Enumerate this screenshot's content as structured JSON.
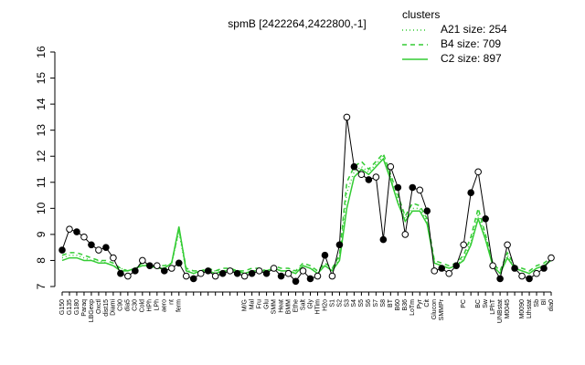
{
  "chart_data": {
    "type": "line",
    "title": "spmB [2422264,2422800,-1]",
    "legend_title": "clusters",
    "legend": "top-right",
    "categories": [
      "G150",
      "G135",
      "G180",
      "Paraq",
      "LBGexp",
      "Oxctl",
      "dist15",
      "Diami",
      "C90",
      "dia5",
      "C30",
      "Cold",
      "HPh",
      "LPh",
      "aero",
      "nt",
      "ferm",
      null,
      null,
      null,
      null,
      null,
      null,
      null,
      null,
      "M/G",
      "Mal",
      "Fru",
      "Glu",
      "SMM",
      "Heat",
      "BMM",
      "Ethe",
      "Salt",
      "Gly",
      "HTim",
      "H2o",
      "S1",
      "S2",
      "S3",
      "S4",
      "S5",
      "S6",
      "S7",
      "S8",
      "BT",
      "B60",
      "B36",
      "LoTm",
      "Pyr",
      "Cit",
      "Glucon",
      "SMMPr",
      null,
      null,
      "PC",
      null,
      "BC",
      "Sw",
      "LPhT",
      "UNBstat",
      "M0045",
      null,
      "M0090",
      "Lthstat",
      "Sb",
      "Bl",
      "dia0"
    ],
    "series": [
      {
        "name": "A21 size: 254",
        "color": "#33cc33",
        "dash": "dotted",
        "values": [
          8.1,
          8.2,
          8.2,
          8.1,
          8.0,
          8.0,
          7.9,
          7.8,
          7.7,
          7.6,
          7.7,
          7.8,
          7.8,
          7.7,
          7.7,
          7.9,
          9.1,
          7.6,
          7.6,
          7.6,
          7.6,
          7.6,
          7.6,
          7.6,
          7.6,
          7.5,
          7.6,
          7.6,
          7.6,
          7.7,
          7.6,
          7.6,
          7.6,
          7.8,
          7.7,
          7.6,
          7.8,
          7.6,
          8.1,
          10.6,
          11.4,
          11.6,
          11.4,
          11.7,
          12.0,
          11.2,
          10.3,
          9.6,
          10.0,
          10.0,
          9.5,
          7.9,
          7.8,
          7.7,
          7.8,
          8.1,
          8.7,
          9.8,
          8.9,
          7.8,
          7.5,
          8.2,
          7.7,
          7.6,
          7.5,
          7.7,
          7.8,
          8.0
        ]
      },
      {
        "name": "B4 size: 709",
        "color": "#33cc33",
        "dash": "dashed",
        "values": [
          8.2,
          8.3,
          8.3,
          8.2,
          8.1,
          8.0,
          8.0,
          7.9,
          7.7,
          7.6,
          7.7,
          7.9,
          7.8,
          7.8,
          7.8,
          7.9,
          9.2,
          7.7,
          7.6,
          7.6,
          7.7,
          7.6,
          7.7,
          7.7,
          7.6,
          7.6,
          7.7,
          7.7,
          7.6,
          7.8,
          7.7,
          7.7,
          7.6,
          7.9,
          7.8,
          7.6,
          7.9,
          7.7,
          8.2,
          11.0,
          11.6,
          11.8,
          11.5,
          11.8,
          12.1,
          11.3,
          10.5,
          9.7,
          10.2,
          10.1,
          9.6,
          8.0,
          7.9,
          7.8,
          7.9,
          8.2,
          8.9,
          10.0,
          9.0,
          7.9,
          7.6,
          8.3,
          7.8,
          7.7,
          7.6,
          7.8,
          7.9,
          8.1
        ]
      },
      {
        "name": "C2 size: 897",
        "color": "#33cc33",
        "dash": "solid",
        "values": [
          8.0,
          8.1,
          8.1,
          8.0,
          8.0,
          7.9,
          7.9,
          7.8,
          7.6,
          7.6,
          7.7,
          7.8,
          7.8,
          7.7,
          7.7,
          7.9,
          9.3,
          7.6,
          7.5,
          7.6,
          7.6,
          7.5,
          7.6,
          7.6,
          7.6,
          7.5,
          7.6,
          7.6,
          7.6,
          7.7,
          7.6,
          7.6,
          7.5,
          7.8,
          7.7,
          7.5,
          7.8,
          7.6,
          8.0,
          10.0,
          11.2,
          11.5,
          11.3,
          11.6,
          11.9,
          11.1,
          10.2,
          9.5,
          9.9,
          9.9,
          9.4,
          7.9,
          7.8,
          7.7,
          7.8,
          8.0,
          8.6,
          9.6,
          8.8,
          7.8,
          7.5,
          8.1,
          7.7,
          7.6,
          7.5,
          7.7,
          7.8,
          8.0
        ]
      }
    ],
    "points": [
      8.4,
      9.2,
      9.1,
      8.9,
      8.6,
      8.4,
      8.5,
      8.1,
      7.5,
      7.4,
      7.6,
      8.0,
      7.8,
      7.8,
      7.6,
      7.7,
      7.9,
      7.4,
      7.3,
      7.5,
      7.6,
      7.4,
      7.5,
      7.6,
      7.5,
      7.4,
      7.5,
      7.6,
      7.5,
      7.7,
      7.4,
      7.5,
      7.2,
      7.6,
      7.3,
      7.4,
      8.2,
      7.4,
      8.6,
      13.5,
      11.6,
      11.3,
      11.1,
      11.2,
      8.8,
      11.6,
      10.8,
      9.0,
      10.8,
      10.7,
      9.9,
      7.6,
      7.7,
      7.5,
      7.8,
      8.6,
      10.6,
      11.4,
      9.6,
      7.8,
      7.3,
      8.6,
      7.7,
      7.4,
      7.3,
      7.5,
      7.7,
      8.1
    ],
    "point_color": "#000000",
    "ylim": [
      7,
      16
    ],
    "yticks": [
      7,
      8,
      9,
      10,
      11,
      12,
      13,
      14,
      15,
      16
    ]
  }
}
